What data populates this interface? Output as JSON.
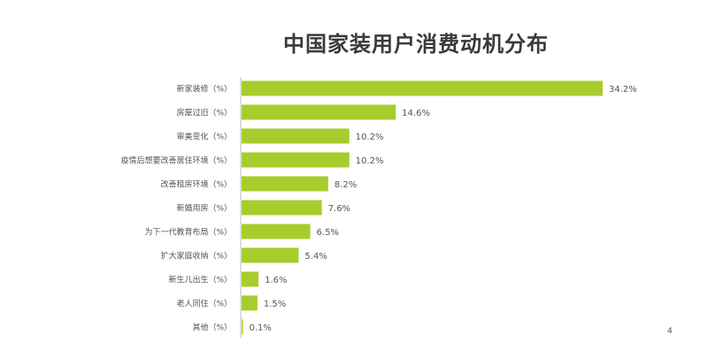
{
  "chart_data": {
    "type": "bar",
    "orientation": "horizontal",
    "title": "中国家装用户消费动机分布",
    "categories": [
      "新家装修（%）",
      "房屋过旧（%）",
      "审美变化（%）",
      "疫情后想要改善居住环境（%）",
      "改善租房环境（%）",
      "新婚用房（%）",
      "为下一代教育布局（%）",
      "扩大家庭收纳（%）",
      "新生儿出生（%）",
      "老人同住（%）",
      "其他（%）"
    ],
    "values": [
      34.2,
      14.6,
      10.2,
      10.2,
      8.2,
      7.6,
      6.5,
      5.4,
      1.6,
      1.5,
      0.1
    ],
    "value_labels": [
      "34.2%",
      "14.6%",
      "10.2%",
      "10.2%",
      "8.2%",
      "7.6%",
      "6.5%",
      "5.4%",
      "1.6%",
      "1.5%",
      "0.1%"
    ],
    "xlim": [
      0,
      35
    ],
    "grid": false,
    "bar_color": "#a8cc2c"
  },
  "page_number": "4"
}
